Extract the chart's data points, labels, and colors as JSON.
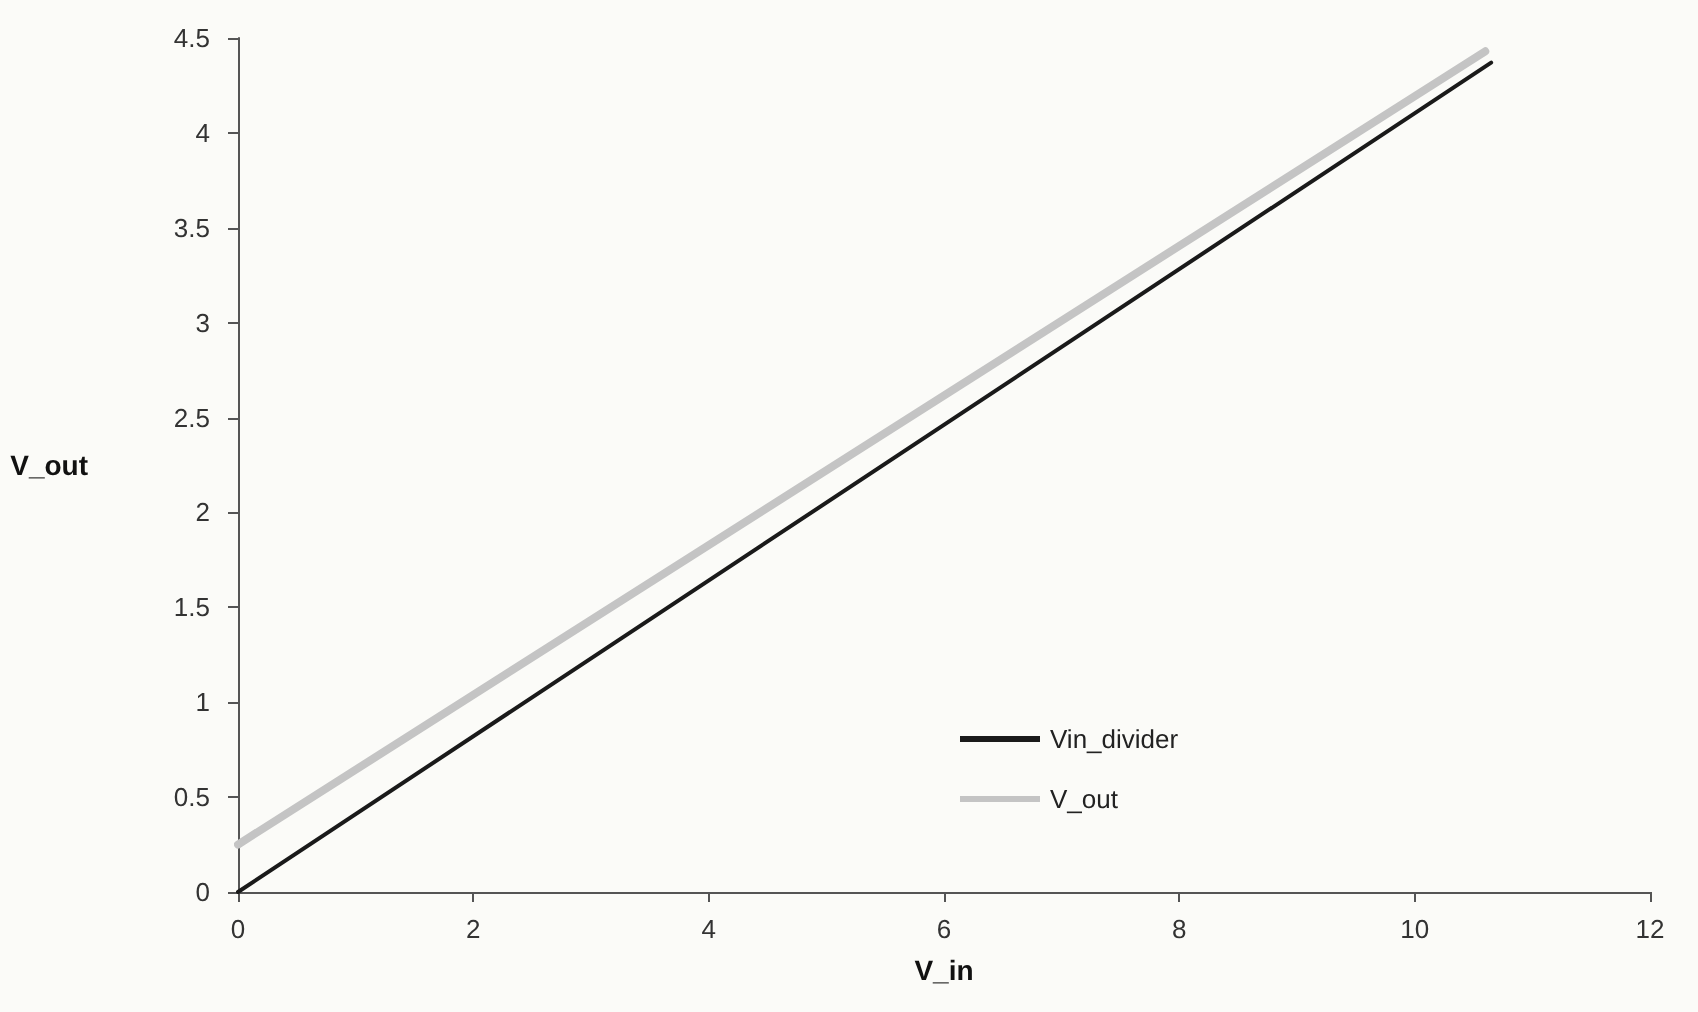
{
  "chart_data": {
    "type": "line",
    "xlabel": "V_in",
    "ylabel": "V_out",
    "xlim": [
      0,
      12
    ],
    "xticks": [
      0,
      2,
      4,
      6,
      8,
      10,
      12
    ],
    "ylim": [
      0,
      4.5
    ],
    "yticks": [
      0,
      0.5,
      1,
      1.5,
      2,
      2.5,
      3,
      3.5,
      4,
      4.5
    ],
    "series": [
      {
        "name": "Vin_divider",
        "color": "#1a1a1a",
        "x": [
          0,
          10.65
        ],
        "values": [
          0,
          4.37
        ]
      },
      {
        "name": "V_out",
        "color": "#c4c4c4",
        "x": [
          0,
          10.6
        ],
        "values": [
          0.25,
          4.43
        ]
      }
    ],
    "grid": false,
    "legend": "bottom",
    "marker": "none",
    "line_style": "solid"
  }
}
